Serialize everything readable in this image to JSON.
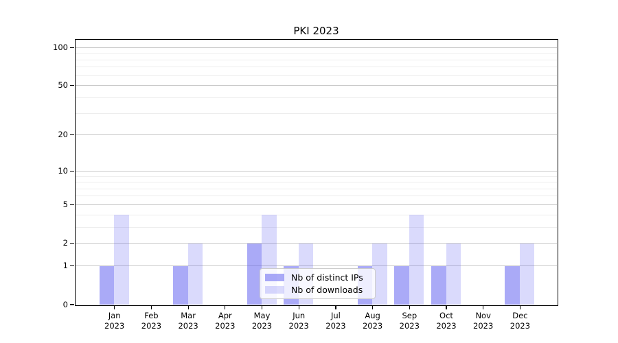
{
  "title": "PKI 2023",
  "chart_data": {
    "type": "bar",
    "title": "PKI 2023",
    "categories": [
      "Jan",
      "Feb",
      "Mar",
      "Apr",
      "May",
      "Jun",
      "Jul",
      "Aug",
      "Sep",
      "Oct",
      "Nov",
      "Dec"
    ],
    "category_year": "2023",
    "series": [
      {
        "name": "Nb of distinct IPs",
        "color": "rgba(85,85,240,0.5)",
        "values": [
          1,
          0,
          1,
          0,
          2,
          1,
          0,
          1,
          1,
          1,
          0,
          1
        ]
      },
      {
        "name": "Nb of downloads",
        "color": "rgba(85,85,240,0.22)",
        "values": [
          4,
          0,
          2,
          0,
          4,
          2,
          0,
          2,
          4,
          2,
          0,
          2
        ]
      }
    ],
    "xlabel": "",
    "ylabel": "",
    "yscale": "log1p",
    "ylim": [
      0,
      115
    ],
    "yticks": [
      0,
      1,
      2,
      5,
      10,
      20,
      50,
      100
    ],
    "yticks_minor": [
      3,
      4,
      6,
      7,
      8,
      9,
      30,
      40,
      60,
      70,
      80,
      90
    ],
    "grid": true,
    "legend_position": "lower center",
    "colors": {
      "grid_major": "#c8c8c8",
      "grid_minor": "#ededed",
      "axis": "#000000",
      "legend_border": "#cccccc",
      "legend_bg": "rgba(255,255,255,0.8)"
    }
  }
}
